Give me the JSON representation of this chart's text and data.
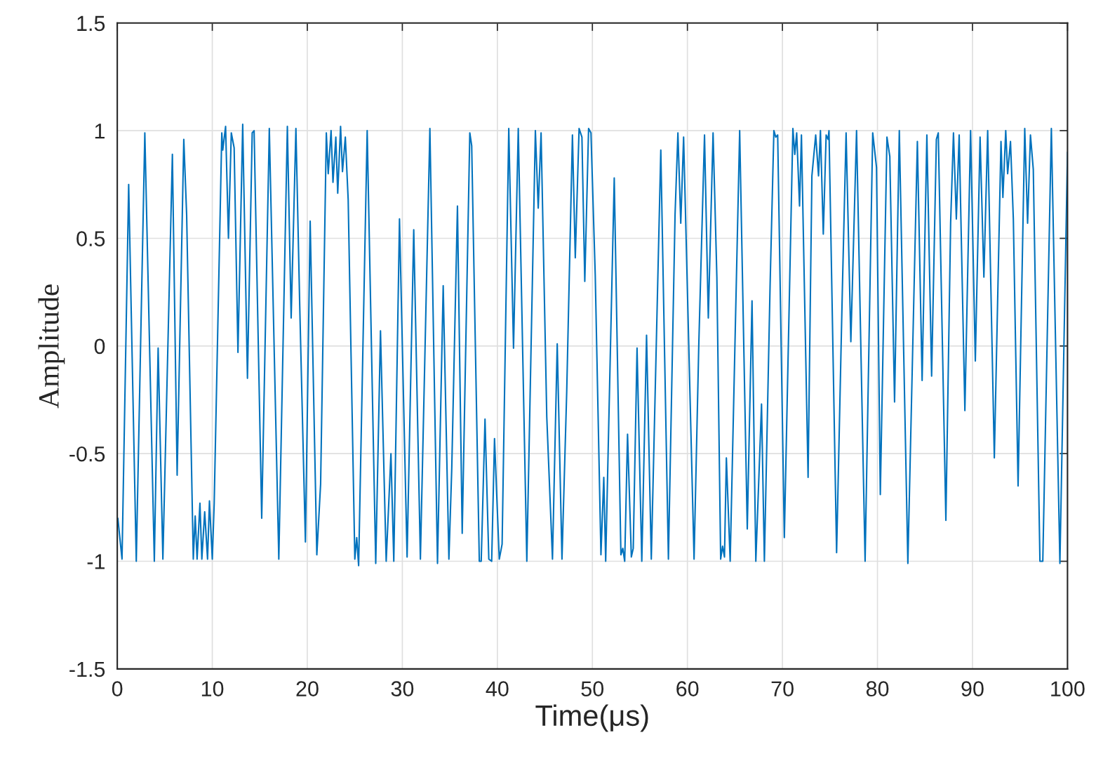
{
  "chart_data": {
    "type": "line",
    "xlabel": "Time(μs)",
    "ylabel": "Amplitude",
    "xlim": [
      0,
      100
    ],
    "xticks": [
      0,
      10,
      20,
      30,
      40,
      50,
      60,
      70,
      80,
      90,
      100
    ],
    "ylim": [
      -1.5,
      1.5
    ],
    "yticks": [
      -1.5,
      -1,
      -0.5,
      0,
      0.5,
      1,
      1.5
    ],
    "grid": true,
    "marker": "none",
    "line_style": "solid",
    "series": [
      {
        "color": "#0072bd",
        "x": [
          0.06,
          0.5,
          1.2,
          2.0,
          2.9,
          3.9,
          4.3,
          4.8,
          5.8,
          6.3,
          7.0,
          7.3,
          8.0,
          8.2,
          8.4,
          8.7,
          8.9,
          9.2,
          9.5,
          9.7,
          10.0,
          10.2,
          11.0,
          11.1,
          11.4,
          11.7,
          12.0,
          12.3,
          12.7,
          13.2,
          13.7,
          14.2,
          14.4,
          15.2,
          16.0,
          17.0,
          17.9,
          18.3,
          18.8,
          19.2,
          19.8,
          20.3,
          21.0,
          21.4,
          22.0,
          22.2,
          22.5,
          22.7,
          23.0,
          23.2,
          23.5,
          23.7,
          24.0,
          24.3,
          25.0,
          25.2,
          25.4,
          26.3,
          27.2,
          27.7,
          28.3,
          28.8,
          29.1,
          29.7,
          30.5,
          31.2,
          31.9,
          32.9,
          33.7,
          34.3,
          34.9,
          35.2,
          35.8,
          36.3,
          37.1,
          37.3,
          38.1,
          38.3,
          38.7,
          39.1,
          39.4,
          39.7,
          40.2,
          40.5,
          41.2,
          41.7,
          42.2,
          43.1,
          44.0,
          44.3,
          44.6,
          45.2,
          45.8,
          46.3,
          46.8,
          47.3,
          47.9,
          48.2,
          48.6,
          48.9,
          49.2,
          49.6,
          49.85,
          50.3,
          50.9,
          51.2,
          51.4,
          52.3,
          53.0,
          53.2,
          53.4,
          53.7,
          54.1,
          54.3,
          54.7,
          55.2,
          55.7,
          56.2,
          57.2,
          58.0,
          58.7,
          59.0,
          59.3,
          59.6,
          60.7,
          61.2,
          61.8,
          62.2,
          62.7,
          63.1,
          63.5,
          63.7,
          63.9,
          64.1,
          64.5,
          65.5,
          66.3,
          66.8,
          67.2,
          67.8,
          68.1,
          68.7,
          69.1,
          69.3,
          69.5,
          70.2,
          71.1,
          71.3,
          71.5,
          71.8,
          72.0,
          72.7,
          73.1,
          73.5,
          73.8,
          74.0,
          74.3,
          74.6,
          74.8,
          74.9,
          75.7,
          76.3,
          76.7,
          77.2,
          77.8,
          78.7,
          79.5,
          79.9,
          80.3,
          81.0,
          81.3,
          81.8,
          82.3,
          83.2,
          84.2,
          84.7,
          85.2,
          85.7,
          86.2,
          86.4,
          87.2,
          87.7,
          88.0,
          88.3,
          88.6,
          89.2,
          89.8,
          90.3,
          90.8,
          91.2,
          91.6,
          92.3,
          93.0,
          93.2,
          93.5,
          93.7,
          94.0,
          94.3,
          94.8,
          95.5,
          95.8,
          96.1,
          96.4,
          97.1,
          97.4,
          98.3,
          99.2,
          100.0
        ],
        "values": [
          -0.8,
          -0.99,
          0.75,
          -1.0,
          0.99,
          -1.0,
          -0.01,
          -0.99,
          0.89,
          -0.6,
          0.96,
          0.61,
          -0.99,
          -0.79,
          -0.99,
          -0.73,
          -0.99,
          -0.77,
          -0.99,
          -0.72,
          -0.99,
          -0.73,
          0.99,
          0.91,
          1.02,
          0.5,
          0.99,
          0.92,
          -0.03,
          1.03,
          -0.15,
          0.99,
          1.0,
          -0.8,
          1.01,
          -0.99,
          1.02,
          0.13,
          1.01,
          0.19,
          -0.91,
          0.58,
          -0.97,
          -0.64,
          0.99,
          0.8,
          1.0,
          0.76,
          0.97,
          0.71,
          1.02,
          0.81,
          0.97,
          0.68,
          -0.99,
          -0.89,
          -1.02,
          1.0,
          -1.01,
          0.07,
          -1.0,
          -0.5,
          -1.0,
          0.59,
          -0.98,
          0.54,
          -0.99,
          1.01,
          -1.01,
          0.28,
          -0.99,
          -0.57,
          0.65,
          -0.87,
          0.99,
          0.93,
          -1.0,
          -1.0,
          -0.34,
          -0.99,
          -1.0,
          -0.43,
          -0.99,
          -0.92,
          1.01,
          -0.01,
          1.01,
          -1.0,
          1.0,
          0.64,
          0.99,
          -0.33,
          -0.99,
          0.01,
          -0.99,
          -0.21,
          0.98,
          0.41,
          1.01,
          0.97,
          0.3,
          1.01,
          0.99,
          0.33,
          -0.97,
          -0.61,
          -1.0,
          0.78,
          -0.97,
          -0.94,
          -1.0,
          -0.41,
          -0.98,
          -0.94,
          -0.01,
          -1.0,
          0.05,
          -0.99,
          0.91,
          -0.99,
          0.61,
          0.99,
          0.57,
          0.97,
          -0.99,
          0.01,
          0.98,
          0.13,
          0.99,
          0.32,
          -0.99,
          -0.93,
          -0.98,
          -0.52,
          -1.0,
          1.0,
          -0.85,
          0.21,
          -1.0,
          -0.27,
          -1.0,
          0.28,
          1.0,
          0.97,
          0.98,
          -0.89,
          1.01,
          0.89,
          0.99,
          0.65,
          0.98,
          -0.61,
          0.79,
          0.98,
          0.79,
          1.0,
          0.52,
          0.98,
          0.96,
          1.0,
          -0.96,
          0.25,
          0.99,
          0.02,
          1.0,
          -1.0,
          0.99,
          0.83,
          -0.69,
          0.97,
          0.88,
          -0.26,
          1.0,
          -1.01,
          0.95,
          -0.16,
          0.98,
          -0.14,
          0.96,
          0.99,
          -0.81,
          0.57,
          0.99,
          0.59,
          0.98,
          -0.3,
          1.0,
          -0.07,
          0.97,
          0.32,
          1.0,
          -0.52,
          0.95,
          0.69,
          1.0,
          0.8,
          0.95,
          0.59,
          -0.65,
          1.01,
          0.57,
          0.98,
          0.82,
          -1.0,
          -1.0,
          1.01,
          -1.01,
          0.9
        ]
      }
    ]
  }
}
